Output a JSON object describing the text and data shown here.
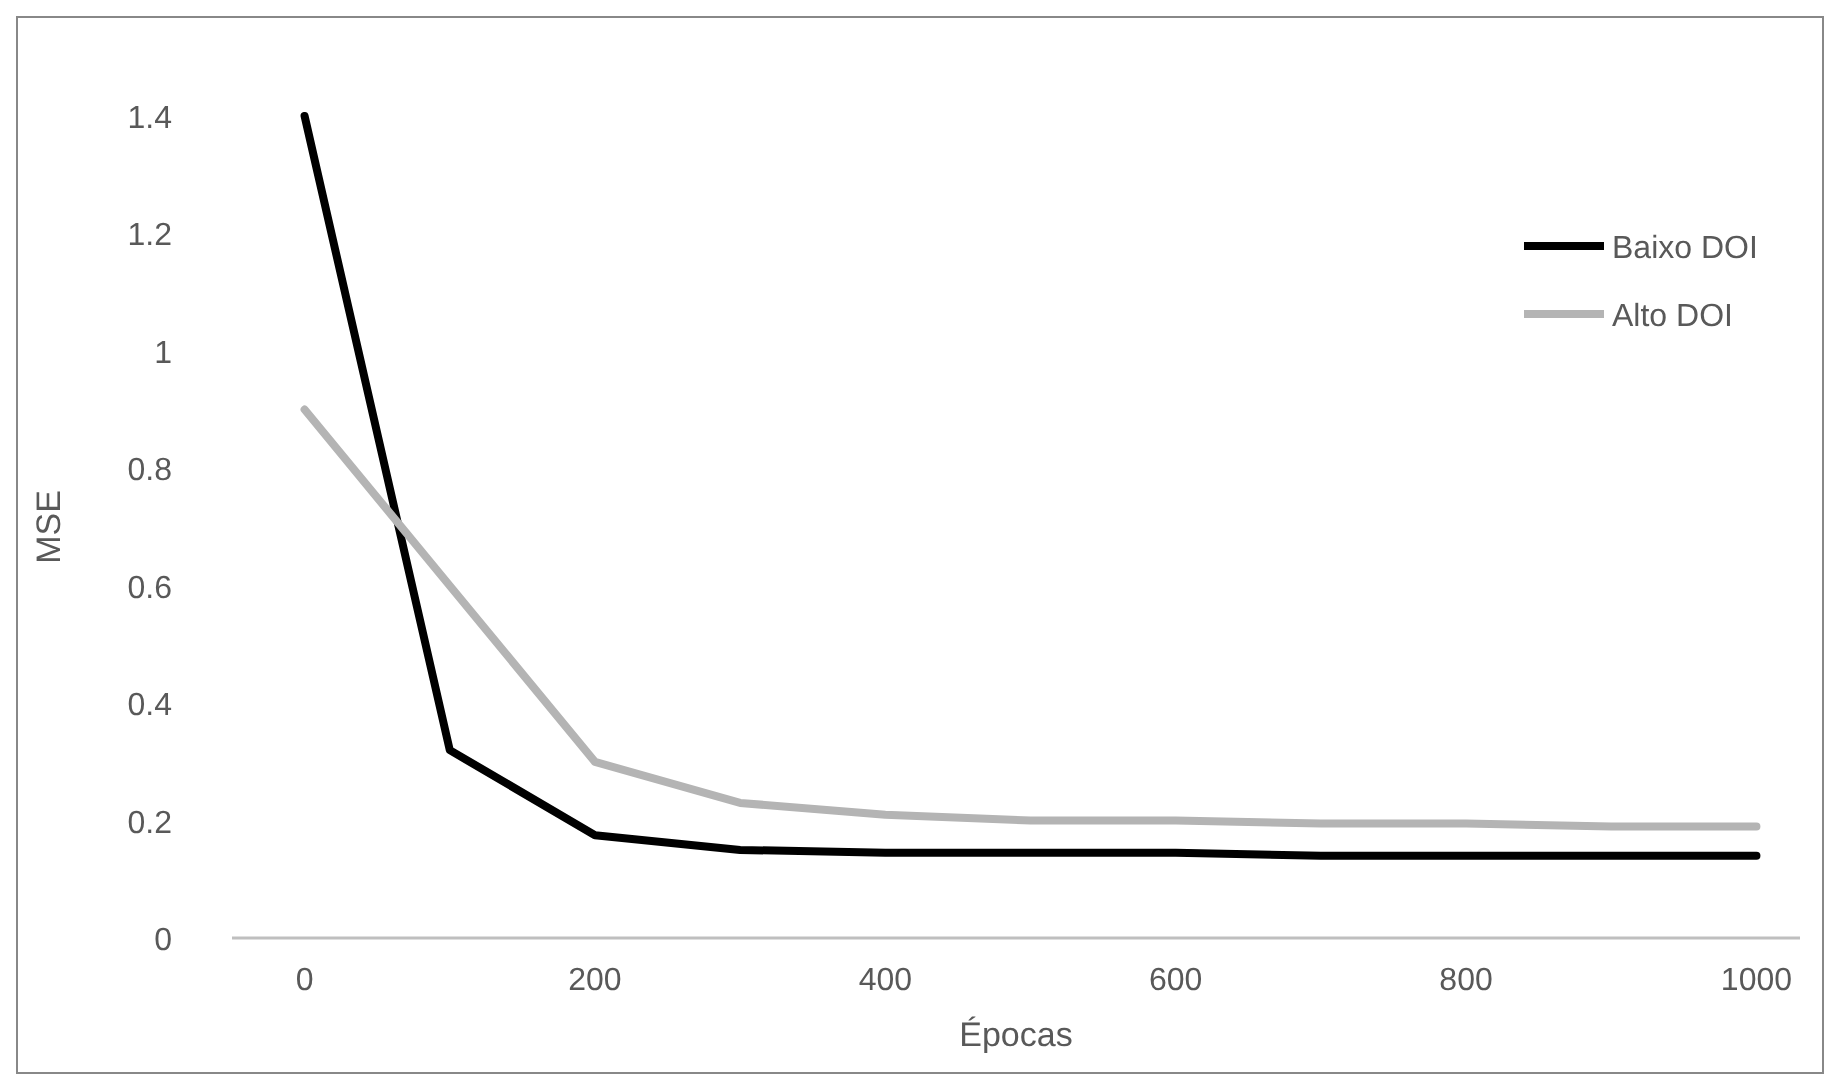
{
  "chart_data": {
    "type": "line",
    "xlabel": "Épocas",
    "ylabel": "MSE",
    "x": [
      0,
      100,
      200,
      300,
      400,
      500,
      600,
      700,
      800,
      900,
      1000
    ],
    "series": [
      {
        "name": "Baixo DOI",
        "color": "#000000",
        "values": [
          1.4,
          0.32,
          0.175,
          0.15,
          0.145,
          0.145,
          0.145,
          0.14,
          0.14,
          0.14,
          0.14
        ]
      },
      {
        "name": "Alto DOI",
        "color": "#b4b4b4",
        "values": [
          0.9,
          0.6,
          0.3,
          0.23,
          0.21,
          0.2,
          0.2,
          0.195,
          0.195,
          0.19,
          0.19
        ]
      }
    ],
    "xlim": [
      -50,
      1030
    ],
    "xticks": [
      0,
      200,
      400,
      600,
      800,
      1000
    ],
    "ylim": [
      0,
      1.4
    ],
    "yticks": [
      0,
      {
        "value": 0.2,
        "label": "0.2"
      },
      {
        "value": 0.4,
        "label": "0.4"
      },
      {
        "value": 0.6,
        "label": "0.6"
      },
      {
        "value": 0.8,
        "label": "0.8"
      },
      1,
      {
        "value": 1.2,
        "label": "1.2"
      },
      {
        "value": 1.4,
        "label": "1.4"
      }
    ],
    "grid": false,
    "legend": "top right",
    "marker": "none",
    "line_style": "solid"
  }
}
